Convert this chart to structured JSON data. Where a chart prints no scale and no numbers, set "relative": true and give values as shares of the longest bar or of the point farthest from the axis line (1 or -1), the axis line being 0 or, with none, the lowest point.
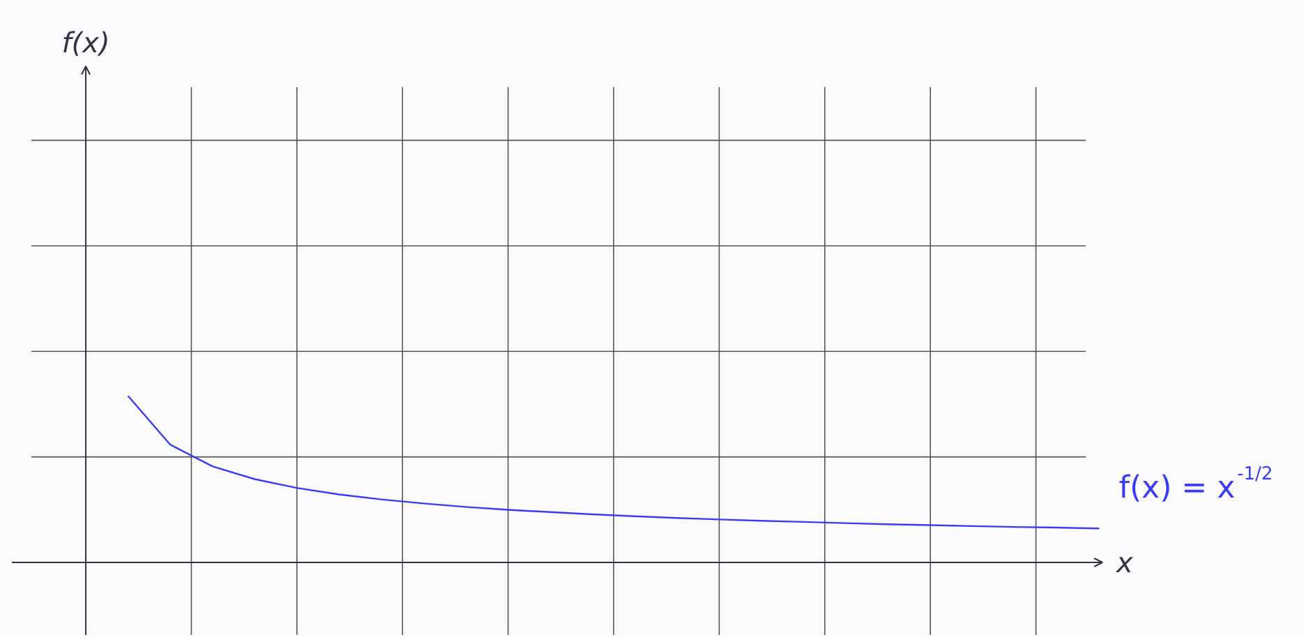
{
  "chart_data": {
    "type": "line",
    "relative": true,
    "xlabel": "x",
    "annotations": [
      "f(x)"
    ],
    "grid": true,
    "categories": [
      null,
      null,
      null,
      null,
      null,
      null,
      null,
      null,
      null,
      null,
      null,
      null,
      null,
      null,
      null,
      null,
      null,
      null,
      null,
      null,
      null,
      null,
      null,
      null
    ],
    "series": [
      {
        "name": "f(x) = x$^{-1/2}$",
        "color": "#3b3bf5",
        "values": [
          1,
          0.707,
          0.577,
          0.5,
          0.447,
          0.408,
          0.378,
          0.354,
          0.333,
          0.316,
          0.302,
          0.289,
          0.277,
          0.267,
          0.258,
          0.25,
          0.243,
          0.236,
          0.229,
          0.224,
          0.218,
          0.213,
          0.209,
          0.204
        ]
      }
    ]
  }
}
